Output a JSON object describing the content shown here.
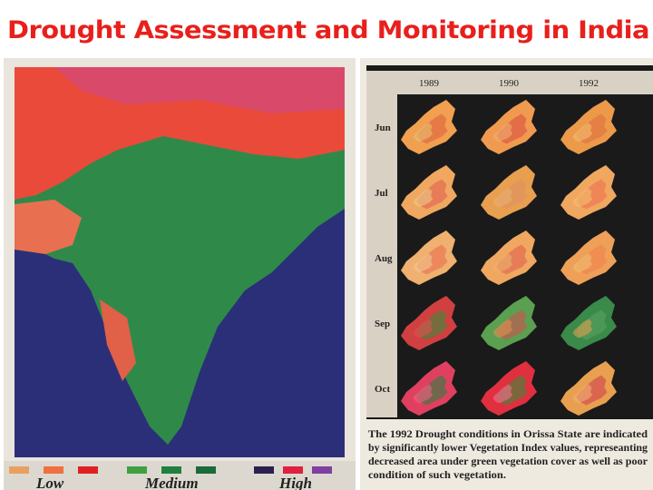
{
  "header": {
    "title": "Drought Assessment and Monitoring in India"
  },
  "map_legend": {
    "labels": [
      "Low",
      "Medium",
      "High"
    ]
  },
  "orissa_panel": {
    "years": [
      "1989",
      "1990",
      "1992"
    ],
    "months": [
      "Jun",
      "Jul",
      "Aug",
      "Sep",
      "Oct"
    ],
    "caption": [
      "The 1992 Drought conditions in Orissa State are indicated",
      "by significantly lower Vegetation Index values, represeanting",
      "decreased area under green vegetation cover as well as poor",
      "condition of such vegetation."
    ]
  }
}
